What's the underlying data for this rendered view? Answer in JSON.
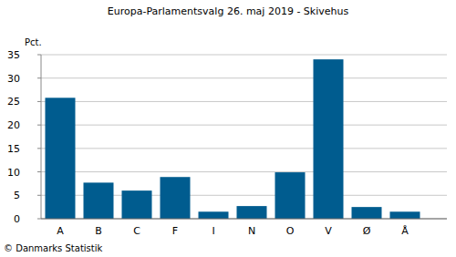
{
  "chart_data": {
    "type": "bar",
    "title": "Europa-Parlamentsvalg 26. maj 2019 - Skivehus",
    "y_label": "Pct.",
    "source": "© Danmarks Statistik",
    "categories": [
      "A",
      "B",
      "C",
      "F",
      "I",
      "N",
      "O",
      "V",
      "Ø",
      "Å"
    ],
    "values": [
      25.8,
      7.7,
      6.0,
      8.9,
      1.5,
      2.7,
      9.9,
      34.0,
      2.5,
      1.5
    ],
    "color": "#005c8f",
    "ylim": [
      0,
      35
    ],
    "yticks": [
      0,
      5,
      10,
      15,
      20,
      25,
      30,
      35
    ],
    "grid": true
  }
}
